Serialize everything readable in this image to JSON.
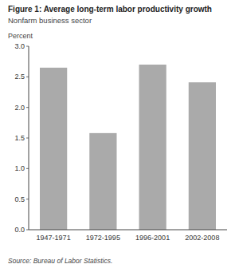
{
  "chart_data": {
    "type": "bar",
    "title": "Figure 1: Average long-term labor productivity growth",
    "subtitle": "Nonfarm business sector",
    "ylabel": "Percent",
    "source": "Source: Bureau of Labor Statistics.",
    "categories": [
      "1947-1971",
      "1972-1995",
      "1996-2001",
      "2002-2008"
    ],
    "values": [
      2.65,
      1.58,
      2.7,
      2.41
    ],
    "color": "#aaaaaa",
    "ylim": [
      0.0,
      3.0
    ],
    "yticks": [
      {
        "value": 0.0,
        "label": "0.0"
      },
      0.5,
      {
        "value": 1.0,
        "label": "1.0"
      },
      1.5,
      {
        "value": 2.0,
        "label": "2.0"
      },
      2.5,
      {
        "value": 3.0,
        "label": "3.0"
      }
    ],
    "grid": false
  }
}
